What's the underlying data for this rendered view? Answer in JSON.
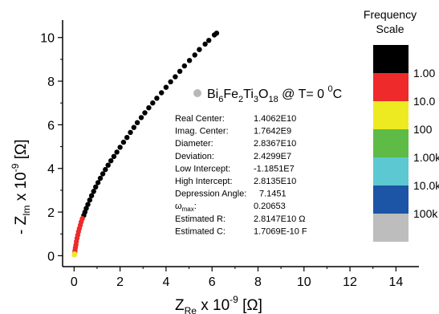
{
  "chart_data": {
    "type": "scatter",
    "xlabel": {
      "main": "Z",
      "sub": "Re",
      "mult": " x 10",
      "exp": "-9",
      "unit": "[Ω]"
    },
    "ylabel": {
      "main": "- Z",
      "sub": "Im",
      "mult": " x 10",
      "exp": "-9",
      "unit": "[Ω]"
    },
    "xlim": [
      -0.5,
      15
    ],
    "ylim": [
      -0.5,
      10.8
    ],
    "xticks": [
      0,
      2,
      4,
      6,
      8,
      10,
      12,
      14
    ],
    "yticks": [
      0,
      2,
      4,
      6,
      8,
      10
    ],
    "grid": false,
    "legend": {
      "position": "top-center",
      "marker_color": "#b8b8b8",
      "formula": [
        {
          "t": "Bi",
          "s": "n"
        },
        {
          "t": "6",
          "s": "sub"
        },
        {
          "t": "Fe",
          "s": "n"
        },
        {
          "t": "2",
          "s": "sub"
        },
        {
          "t": "Ti",
          "s": "n"
        },
        {
          "t": "3",
          "s": "sub"
        },
        {
          "t": "O",
          "s": "n"
        },
        {
          "t": "18",
          "s": "sub"
        },
        {
          "t": " @ T= 0 ",
          "s": "n"
        },
        {
          "t": "0",
          "s": "sup"
        },
        {
          "t": "C",
          "s": "n"
        }
      ]
    },
    "fit_results": [
      {
        "label": "Real Center:",
        "value": "1.4062E10"
      },
      {
        "label": "Imag. Center:",
        "value": "1.7642E9"
      },
      {
        "label": "Diameter:",
        "value": "2.8367E10"
      },
      {
        "label": "Deviation:",
        "value": "2.4299E7"
      },
      {
        "label": "Low Intercept:",
        "value": "-1.1851E7"
      },
      {
        "label": "High Intercept:",
        "value": "2.8135E10"
      },
      {
        "label": "Depression Angle:",
        "value": "7.1451"
      },
      {
        "label": "ω",
        "label_sub": "max",
        "label_suffix": ":",
        "value": "0.20653"
      },
      {
        "label": "Estimated R:",
        "value": "2.8147E10 Ω"
      },
      {
        "label": "Estimated C:",
        "value": "1.7069E-10 F"
      }
    ],
    "frequency_scale": {
      "title": [
        "Frequency",
        "Scale"
      ],
      "bands": [
        {
          "color": "#000000"
        },
        {
          "color": "#ee2a2a"
        },
        {
          "color": "#eeea22"
        },
        {
          "color": "#5dbb46"
        },
        {
          "color": "#5cc8d2"
        },
        {
          "color": "#1d55a6"
        },
        {
          "color": "#bdbdbd"
        }
      ],
      "labels": [
        "1.00",
        "10.0",
        "100",
        "1.00k",
        "10.0k",
        "100k"
      ]
    },
    "series": [
      {
        "color": "#000000",
        "points": [
          [
            6.2,
            10.2
          ],
          [
            6.1,
            10.12
          ],
          [
            5.86,
            9.87
          ],
          [
            5.7,
            9.7
          ],
          [
            5.45,
            9.45
          ],
          [
            5.25,
            9.2
          ],
          [
            5.02,
            8.95
          ],
          [
            4.8,
            8.7
          ],
          [
            4.6,
            8.45
          ],
          [
            4.4,
            8.2
          ],
          [
            4.2,
            7.97
          ],
          [
            4.0,
            7.72
          ],
          [
            3.8,
            7.47
          ],
          [
            3.6,
            7.22
          ],
          [
            3.42,
            7.0
          ],
          [
            3.25,
            6.78
          ],
          [
            3.08,
            6.55
          ],
          [
            2.92,
            6.33
          ],
          [
            2.75,
            6.1
          ],
          [
            2.6,
            5.88
          ],
          [
            2.45,
            5.65
          ],
          [
            2.3,
            5.42
          ],
          [
            2.15,
            5.2
          ],
          [
            2.0,
            4.97
          ],
          [
            1.86,
            4.75
          ],
          [
            1.73,
            4.55
          ],
          [
            1.6,
            4.35
          ],
          [
            1.48,
            4.15
          ],
          [
            1.36,
            3.95
          ],
          [
            1.25,
            3.75
          ],
          [
            1.14,
            3.55
          ],
          [
            1.04,
            3.35
          ],
          [
            0.94,
            3.15
          ],
          [
            0.85,
            2.95
          ],
          [
            0.76,
            2.75
          ],
          [
            0.68,
            2.55
          ],
          [
            0.6,
            2.35
          ],
          [
            0.53,
            2.17
          ],
          [
            0.47,
            2.0
          ],
          [
            0.42,
            1.85
          ]
        ]
      },
      {
        "color": "#ee2a2a",
        "points": [
          [
            0.36,
            1.7
          ],
          [
            0.31,
            1.55
          ],
          [
            0.27,
            1.4
          ],
          [
            0.23,
            1.25
          ],
          [
            0.19,
            1.1
          ],
          [
            0.16,
            0.95
          ],
          [
            0.13,
            0.8
          ],
          [
            0.1,
            0.65
          ],
          [
            0.08,
            0.5
          ],
          [
            0.06,
            0.38
          ],
          [
            0.04,
            0.26
          ],
          [
            0.03,
            0.16
          ]
        ]
      },
      {
        "color": "#eeea22",
        "points": [
          [
            0.02,
            0.08
          ],
          [
            0.01,
            0.04
          ]
        ]
      }
    ]
  }
}
